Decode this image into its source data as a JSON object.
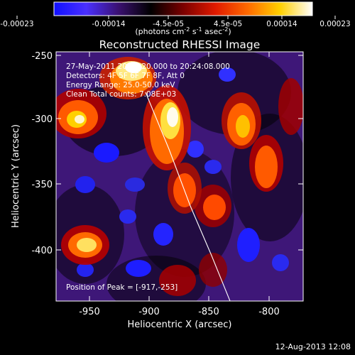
{
  "colorbar": {
    "ticks": [
      "-0.00023",
      "-0.00014",
      "-4.5e-05",
      "4.5e-05",
      "0.00014",
      "0.00023"
    ],
    "units": {
      "pre": "(photons cm",
      "e1": "-2",
      "mid1": " s",
      "e2": "-1",
      "mid2": " asec",
      "e3": "-2",
      "post": ")"
    },
    "stops": [
      "#1010ff",
      "#4a30ff",
      "#3a1070",
      "#000000",
      "#7a0000",
      "#e01a00",
      "#ff6a00",
      "#ffd000",
      "#ffffff"
    ]
  },
  "plot": {
    "title": "Reconstructed RHESSI Image",
    "xlabel": "Heliocentric X (arcsec)",
    "ylabel": "Heliocentric Y (arcsec)",
    "xticks": [
      "-950",
      "-900",
      "-850",
      "-800"
    ],
    "yticks": [
      "-250",
      "-300",
      "-350",
      "-400"
    ],
    "annotations": [
      "27-May-2011 20:20:20.000 to 20:24:08.000",
      "Detectors: 4F 5F 6F 7F 8F, Att 0",
      "Energy Range: 25.0-50.0 keV",
      "Clean    Total counts: 7.08E+03"
    ],
    "peak_label": "Position of Peak = [-917,-253]"
  },
  "footer": {
    "date": "12-Aug-2013 12:08"
  }
}
